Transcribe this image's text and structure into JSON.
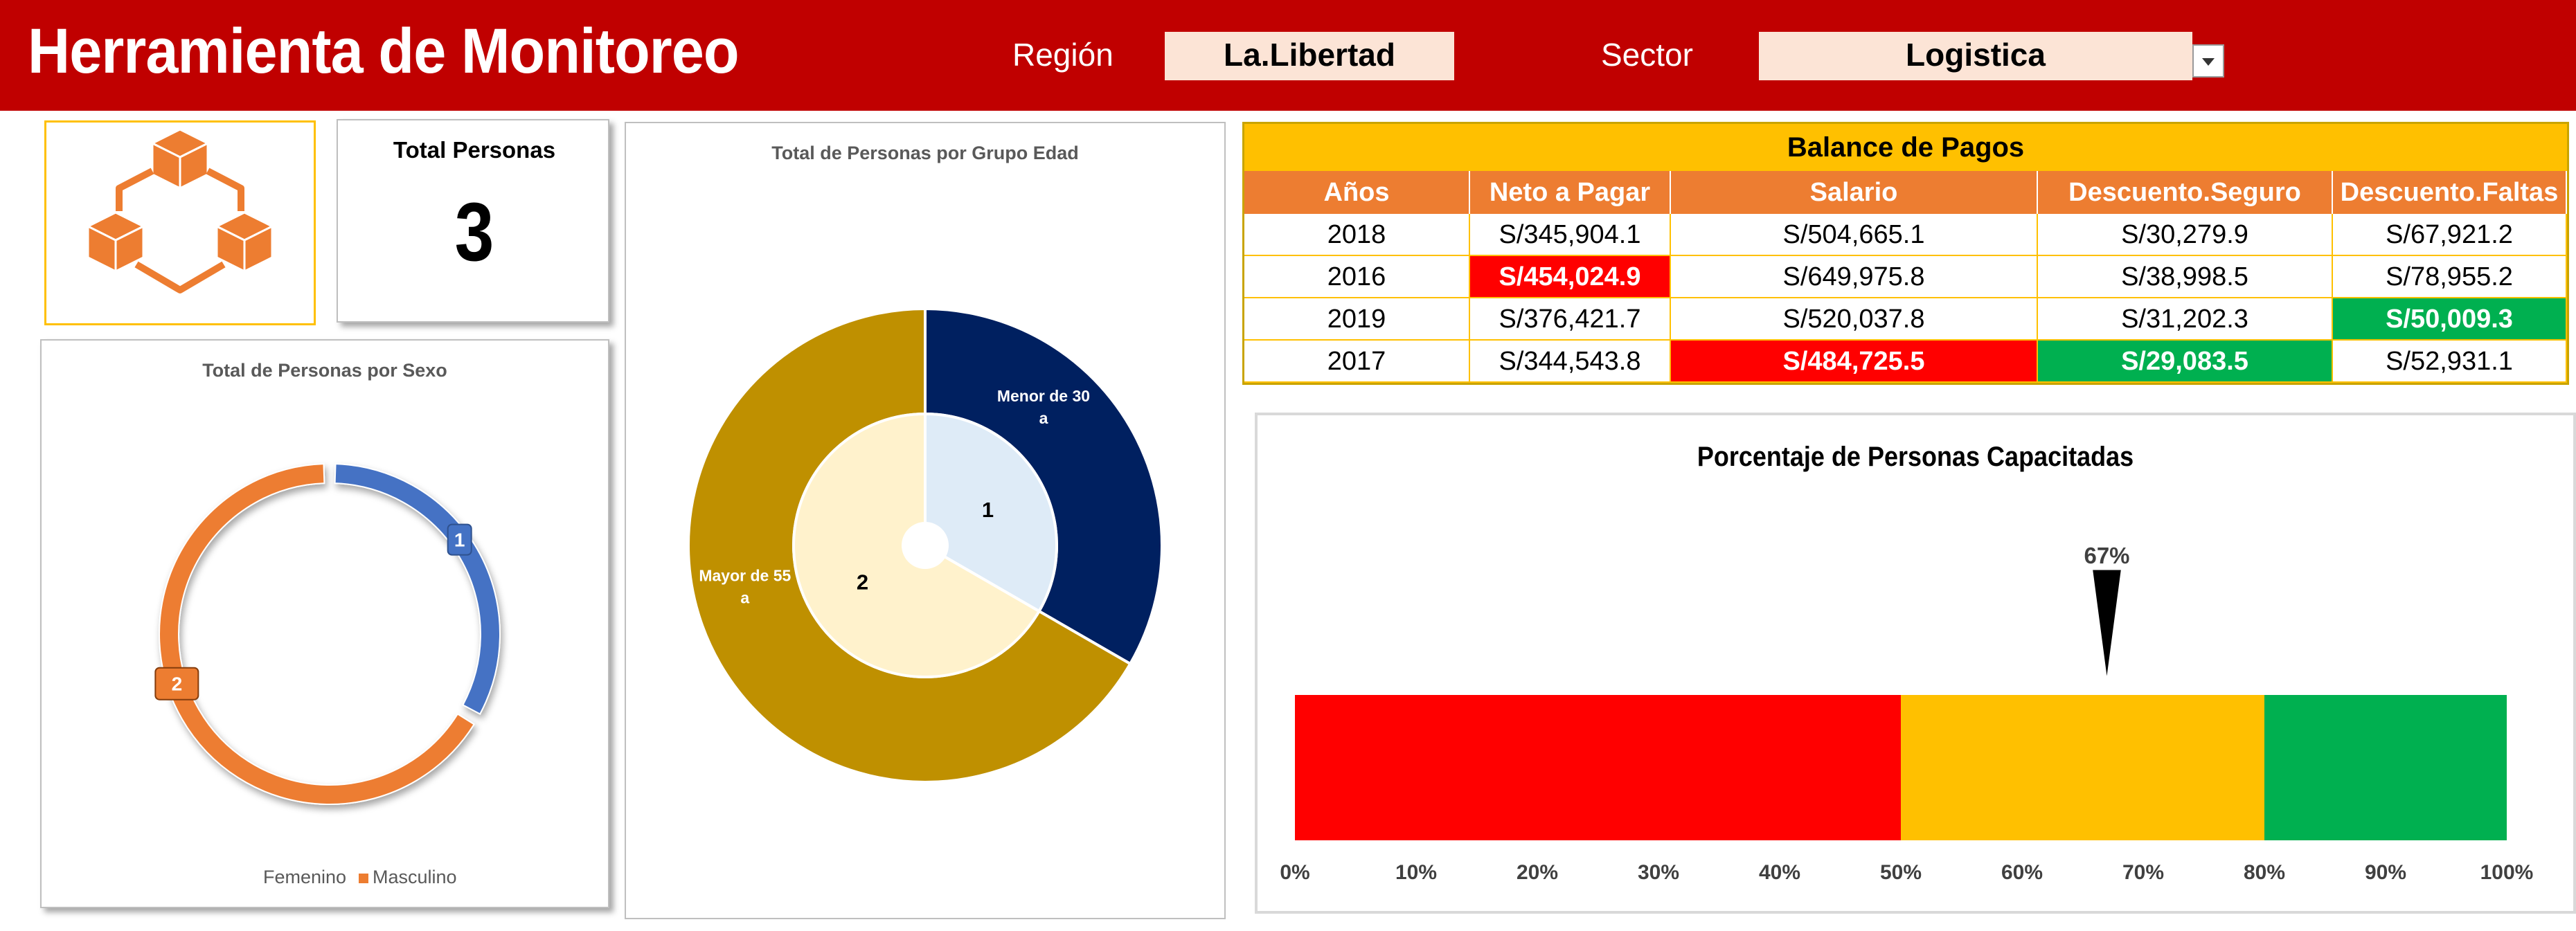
{
  "header": {
    "title": "Herramienta de Monitoreo",
    "region_label": "Región",
    "region_value": "La.Libertad",
    "sector_label": "Sector",
    "sector_value": "Logistica"
  },
  "logo": {
    "icon": "boxes-network-icon",
    "color": "#ed7d31"
  },
  "total": {
    "label": "Total Personas",
    "value": "3"
  },
  "balance": {
    "title": "Balance de Pagos",
    "columns": [
      "Años",
      "Neto a Pagar",
      "Salario",
      "Descuento.Seguro",
      "Descuento.Faltas"
    ],
    "rows": [
      [
        "2018",
        "S/345,904.1",
        "S/504,665.1",
        "S/30,279.9",
        "S/67,921.2"
      ],
      [
        "2016",
        "S/454,024.9",
        "S/649,975.8",
        "S/38,998.5",
        "S/78,955.2"
      ],
      [
        "2019",
        "S/376,421.7",
        "S/520,037.8",
        "S/31,202.3",
        "S/50,009.3"
      ],
      [
        "2017",
        "S/344,543.8",
        "S/484,725.5",
        "S/29,083.5",
        "S/52,931.1"
      ]
    ],
    "highlight_colors": {
      "red": "#ff0000",
      "green": "#00b050"
    }
  },
  "chart_data": [
    {
      "type": "pie",
      "variant": "donut",
      "title": "Total de Personas por Sexo",
      "categories": [
        "Femenino",
        "Masculino"
      ],
      "values": [
        1,
        2
      ],
      "data_labels": [
        "1",
        "2"
      ],
      "colors": [
        "#4472c4",
        "#ed7d31"
      ],
      "legend": "bottom"
    },
    {
      "type": "pie",
      "variant": "nested-donut",
      "title": "Total de Personas por Grupo Edad",
      "categories": [
        "Menor de 30 a",
        "Mayor de 55 a"
      ],
      "outer_values": [
        1,
        2
      ],
      "inner_values": [
        1,
        2
      ],
      "outer_colors": [
        "#002060",
        "#bf9000"
      ],
      "inner_colors": [
        "#deebf7",
        "#fff2cc"
      ],
      "inner_labels": [
        "1",
        "2"
      ]
    },
    {
      "type": "bar",
      "variant": "gauge-bar",
      "title": "Porcentaje de Personas Capacitadas",
      "bands": [
        {
          "from": 0,
          "to": 50,
          "color": "#ff0000"
        },
        {
          "from": 50,
          "to": 80,
          "color": "#ffc000"
        },
        {
          "from": 80,
          "to": 100,
          "color": "#00b050"
        }
      ],
      "marker_value": 67,
      "marker_label": "67%",
      "ticks": [
        "0%",
        "10%",
        "20%",
        "30%",
        "40%",
        "50%",
        "60%",
        "70%",
        "80%",
        "90%",
        "100%"
      ],
      "xlim": [
        0,
        100
      ]
    }
  ]
}
